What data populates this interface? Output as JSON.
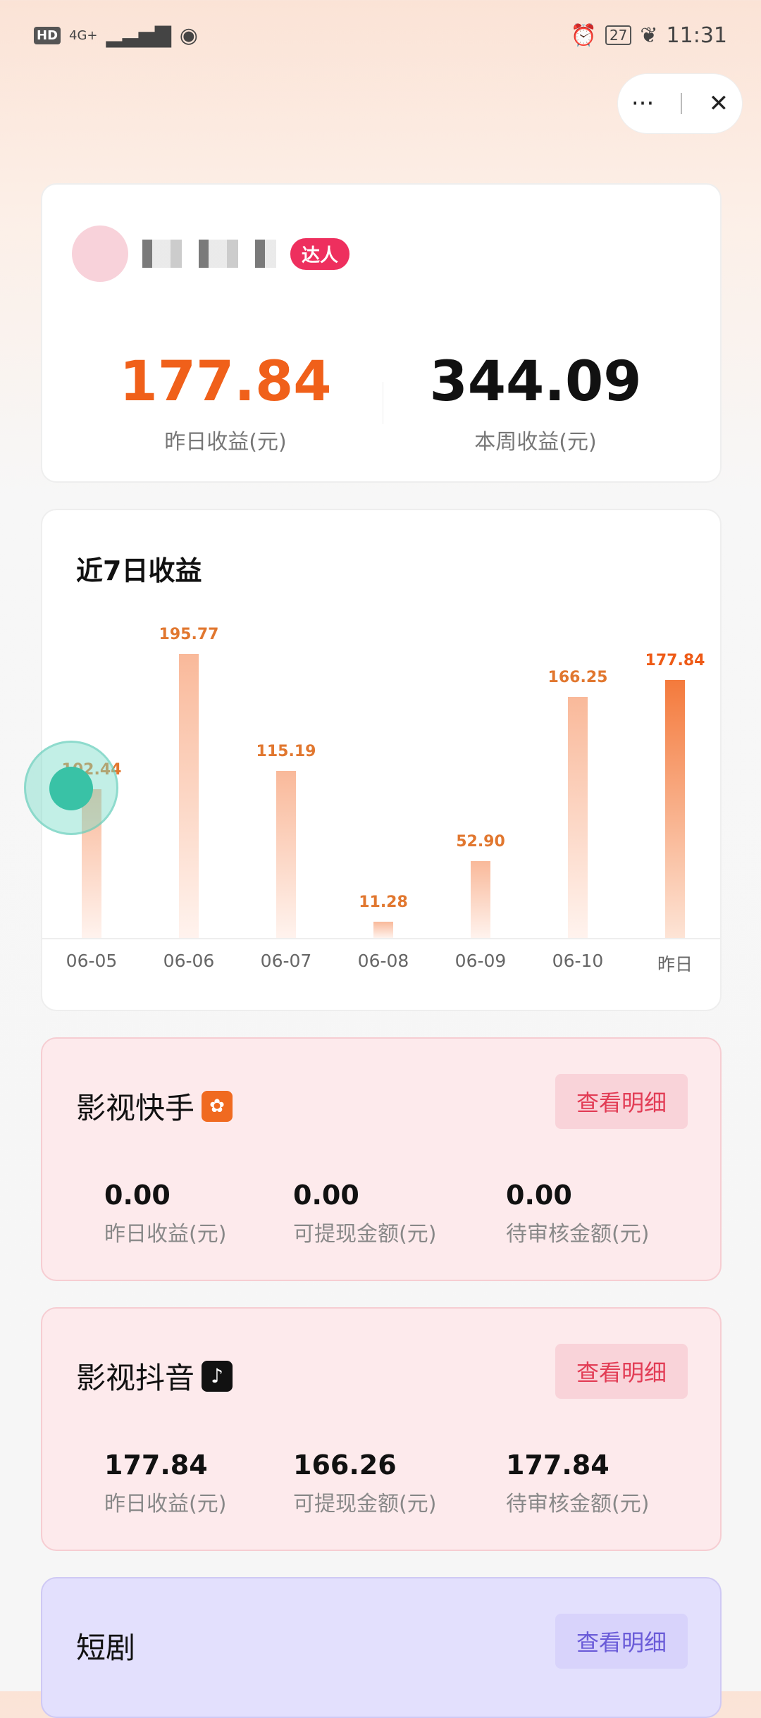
{
  "status_bar": {
    "left": "HD",
    "network": "4G+",
    "time": "11:31",
    "battery": "27"
  },
  "capsule": {
    "more": "···",
    "close": "✕"
  },
  "profile": {
    "badge": "达人",
    "yesterday_value": "177.84",
    "yesterday_label": "昨日收益(元)",
    "week_value": "344.09",
    "week_label": "本周收益(元)"
  },
  "chart_title": "近7日收益",
  "chart_data": {
    "type": "bar",
    "title": "近7日收益",
    "categories": [
      "06-05",
      "06-06",
      "06-07",
      "06-08",
      "06-09",
      "06-10",
      "昨日"
    ],
    "values": [
      102.44,
      195.77,
      115.19,
      11.28,
      52.9,
      166.25,
      177.84
    ],
    "labels": [
      "102.44",
      "195.77",
      "115.19",
      "11.28",
      "52.90",
      "166.25",
      "177.84"
    ],
    "highlight_color": "#f47a3c",
    "bar_color": "#f9b99a"
  },
  "platforms": [
    {
      "title": "影视快手",
      "icon": "kuaishou-icon",
      "button": "查看明细",
      "stats": [
        {
          "value": "0.00",
          "label": "昨日收益(元)"
        },
        {
          "value": "0.00",
          "label": "可提现金额(元)"
        },
        {
          "value": "0.00",
          "label": "待审核金额(元)"
        }
      ]
    },
    {
      "title": "影视抖音",
      "icon": "douyin-icon",
      "button": "查看明细",
      "stats": [
        {
          "value": "177.84",
          "label": "昨日收益(元)"
        },
        {
          "value": "166.26",
          "label": "可提现金额(元)"
        },
        {
          "value": "177.84",
          "label": "待审核金额(元)"
        }
      ]
    },
    {
      "title": "短剧",
      "button": "查看明细"
    }
  ]
}
